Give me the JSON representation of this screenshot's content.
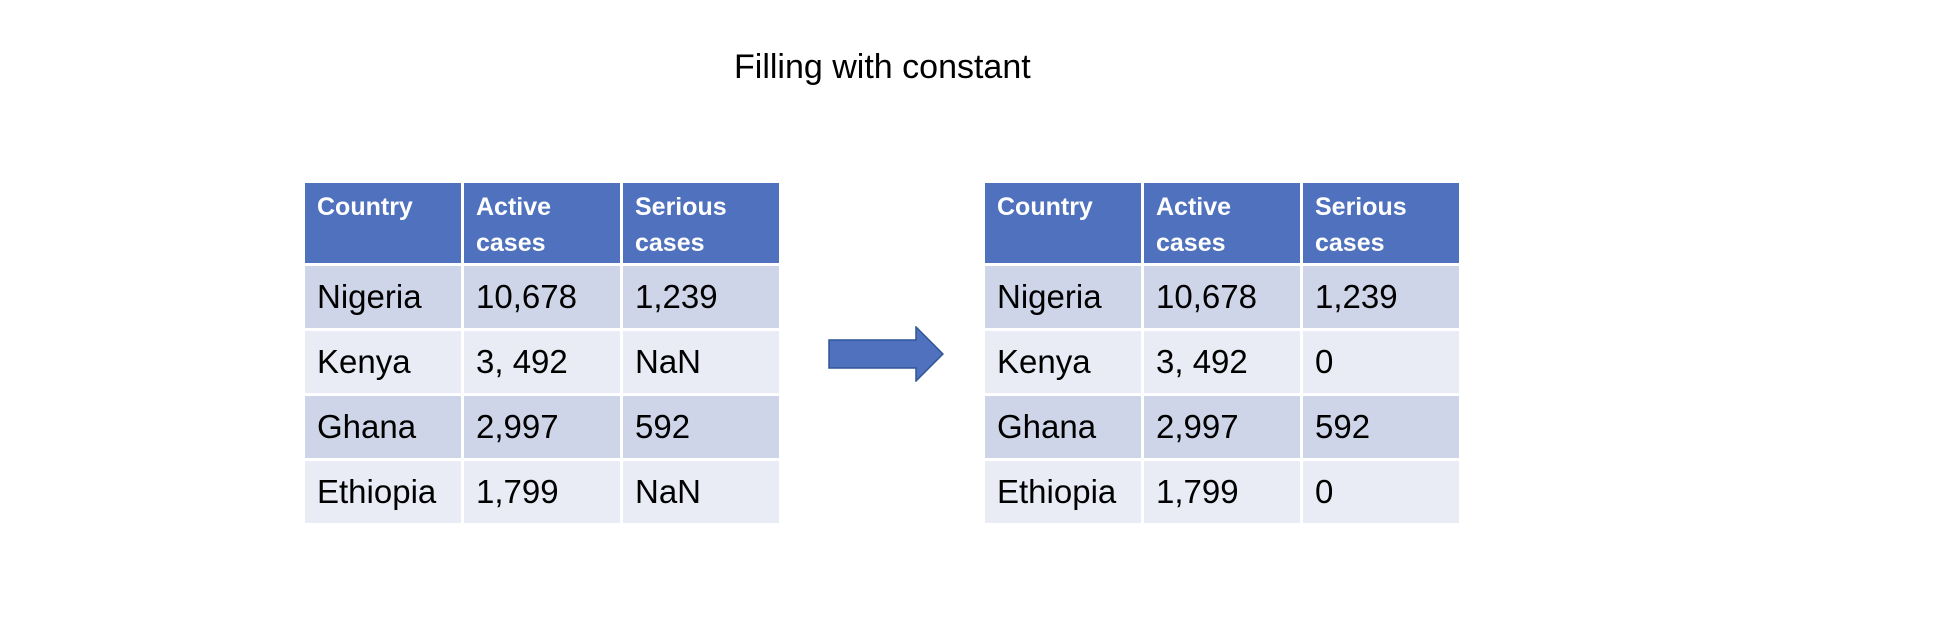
{
  "title": "Filling with constant",
  "colors": {
    "header_bg": "#4f71be",
    "row_odd_bg": "#cfd5e8",
    "row_even_bg": "#e9ebf5",
    "arrow_fill": "#4f71be",
    "arrow_stroke": "#2f5597"
  },
  "arrow_icon": "right-arrow",
  "left_table": {
    "headers": [
      "Country",
      "Active cases",
      "Serious cases"
    ],
    "rows": [
      [
        "Nigeria",
        "10,678",
        "1,239"
      ],
      [
        "Kenya",
        "3, 492",
        "NaN"
      ],
      [
        "Ghana",
        "2,997",
        "592"
      ],
      [
        "Ethiopia",
        "1,799",
        "NaN"
      ]
    ]
  },
  "right_table": {
    "headers": [
      "Country",
      "Active cases",
      "Serious cases"
    ],
    "rows": [
      [
        "Nigeria",
        "10,678",
        "1,239"
      ],
      [
        "Kenya",
        "3, 492",
        "0"
      ],
      [
        "Ghana",
        "2,997",
        "592"
      ],
      [
        "Ethiopia",
        "1,799",
        "0"
      ]
    ]
  }
}
